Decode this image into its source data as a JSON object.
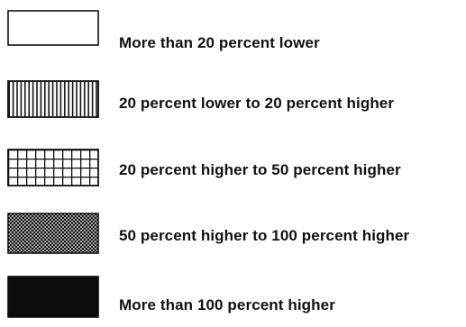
{
  "legend": {
    "items": [
      {
        "label": "More than 20 percent lower",
        "pattern": "blank-icon"
      },
      {
        "label": "20 percent lower to 20 percent higher",
        "pattern": "vertical-lines-icon"
      },
      {
        "label": "20 percent higher to 50 percent higher",
        "pattern": "grid-icon"
      },
      {
        "label": "50 percent higher to 100 percent higher",
        "pattern": "crosshatch-icon"
      },
      {
        "label": "More than 100 percent higher",
        "pattern": "solid-fill-icon"
      }
    ]
  },
  "colors": {
    "ink": "#111111",
    "background": "#ffffff"
  }
}
